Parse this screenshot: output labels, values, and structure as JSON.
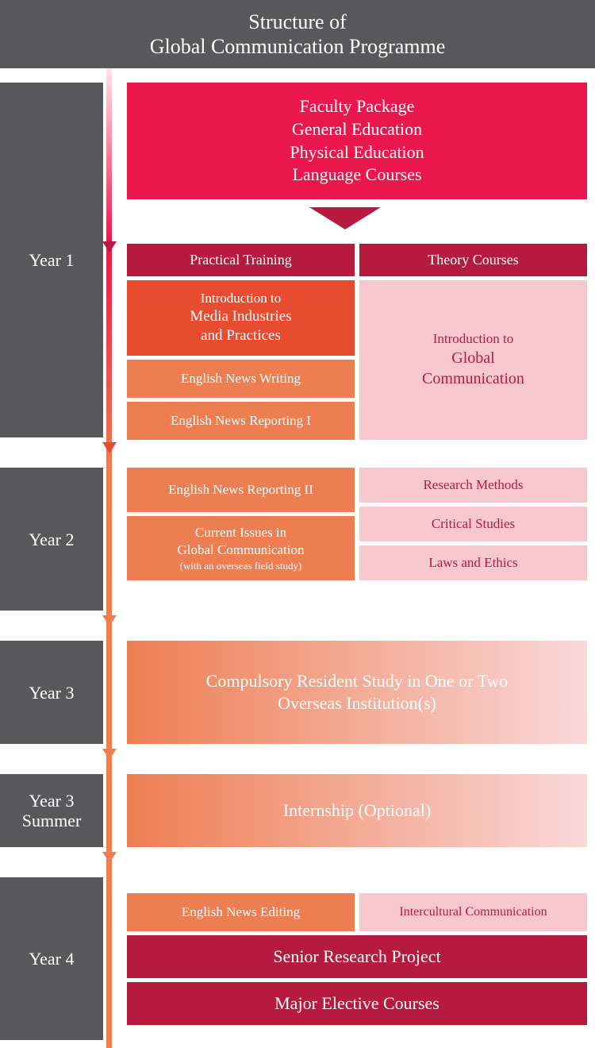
{
  "header": {
    "line1": "Structure of",
    "line2": "Global Communication Programme"
  },
  "colors": {
    "header_bg": "#58585a",
    "year_bg": "#58585a",
    "faculty_bg": "#ea174c",
    "faculty_arrow": "#b71a3f",
    "col_practical": "#b71a3f",
    "col_theory": "#b71a3f",
    "intro_media_bg": "#e84c30",
    "orange_bg": "#ed7e52",
    "pink_bg": "#f7c9ce",
    "pink_text": "#b71a3f",
    "year3_grad_from": "#ed7e52",
    "year3_grad_to": "#f9d8d9",
    "senior_bg": "#b71a3f",
    "elective_bg": "#b71a3f",
    "timeline_top": "#ea174c",
    "timeline_mid": "#ed7e52",
    "timeline_bot": "#ed7e52"
  },
  "years": {
    "y1": "Year 1",
    "y2": "Year 2",
    "y3": "Year 3",
    "y3s": "Year 3\nSummer",
    "y4": "Year 4"
  },
  "faculty": {
    "l1": "Faculty Package",
    "l2": "General Education",
    "l3": "Physical Education",
    "l4": "Language Courses"
  },
  "columns": {
    "practical": "Practical Training",
    "theory": "Theory Courses"
  },
  "year1": {
    "intro_media_l1": "Introduction to",
    "intro_media_l2": "Media Industries",
    "intro_media_l3": "and Practices",
    "eng_writing": "English News Writing",
    "eng_report1": "English News Reporting I",
    "intro_gc_l1": "Introduction to",
    "intro_gc_l2": "Global",
    "intro_gc_l3": "Communication"
  },
  "year2": {
    "eng_report2": "English News Reporting II",
    "current_l1": "Current Issues in",
    "current_l2": "Global Communication",
    "current_sub": "(with an overseas field study)",
    "research": "Research Methods",
    "critical": "Critical Studies",
    "laws": "Laws and Ethics"
  },
  "year3": {
    "l1": "Compulsory Resident Study in One or Two",
    "l2": "Overseas Institution(s)"
  },
  "year3s": {
    "text": "Internship (Optional)"
  },
  "year4": {
    "editing": "English News Editing",
    "intercultural": "Intercultural Communication",
    "senior": "Senior Research Project",
    "elective": "Major Elective Courses"
  },
  "layout": {
    "year1_height": 447,
    "year2_height": 180,
    "year3_height": 130,
    "year3s_height": 92,
    "year4_height": 205,
    "gap": 38,
    "faculty_h": 130,
    "arrow_gap": 55,
    "col_header_h": 42,
    "y1_stack_h": 215,
    "y3_box_h": 130,
    "y3s_box_h": 92
  }
}
